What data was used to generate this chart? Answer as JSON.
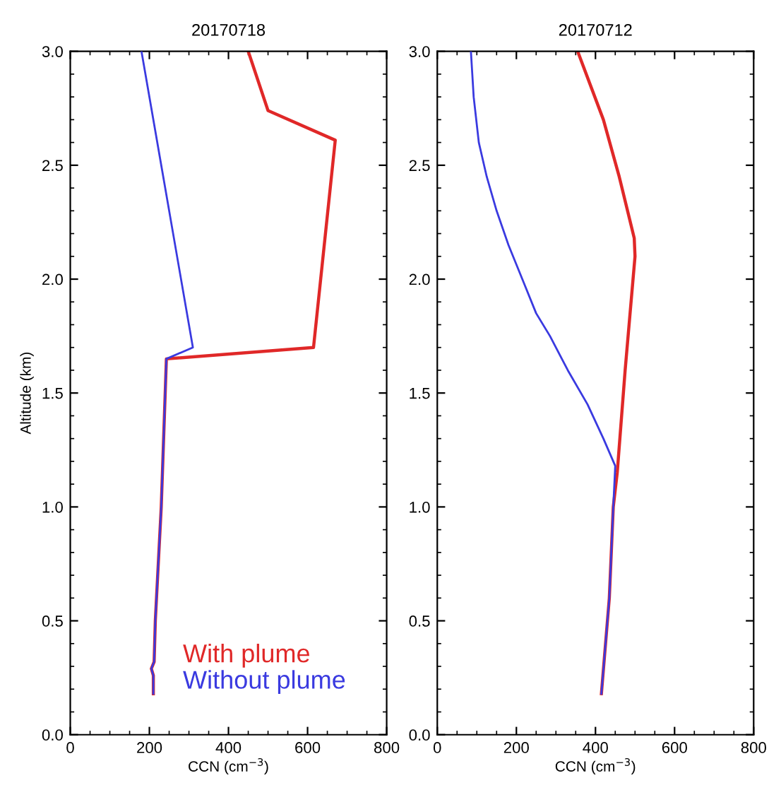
{
  "chart_data": [
    {
      "type": "line",
      "title": "20170718",
      "xlabel": "CCN (cm$^{−3}$)",
      "ylabel": "Altitude (km)",
      "xlim": [
        0,
        800
      ],
      "xticks": [
        0,
        200,
        400,
        600,
        800
      ],
      "ylim": [
        0,
        3.0
      ],
      "yticks": [
        {
          "value": 0,
          "label": "0.0"
        },
        0.5,
        {
          "value": 1,
          "label": "1.0"
        },
        1.5,
        {
          "value": 2,
          "label": "2.0"
        },
        2.5,
        {
          "value": 3,
          "label": "3.0"
        }
      ],
      "grid": false,
      "legend": "bottom right",
      "series": [
        {
          "name": "With plume",
          "color": "#e02828",
          "x": [
            210,
            210,
            205,
            212,
            215,
            230,
            240,
            243,
            615,
            670,
            500,
            450
          ],
          "values": [
            0.18,
            0.26,
            0.29,
            0.32,
            0.5,
            1.0,
            1.5,
            1.65,
            1.7,
            2.61,
            2.74,
            3.0
          ]
        },
        {
          "name": "Without plume",
          "color": "#3a3ae0",
          "x": [
            210,
            210,
            205,
            212,
            215,
            230,
            240,
            243,
            310,
            180
          ],
          "values": [
            0.18,
            0.26,
            0.29,
            0.32,
            0.5,
            1.0,
            1.5,
            1.65,
            1.7,
            3.0
          ]
        }
      ]
    },
    {
      "type": "line",
      "title": "20170712",
      "xlabel": "CCN (cm$^{−3}$)",
      "xlim": [
        0,
        800
      ],
      "xticks": [
        0,
        200,
        400,
        600,
        800
      ],
      "ylim": [
        0,
        3.0
      ],
      "yticks": [
        {
          "value": 0,
          "label": "0.0"
        },
        0.5,
        {
          "value": 1,
          "label": "1.0"
        },
        1.5,
        {
          "value": 2,
          "label": "2.0"
        },
        2.5,
        {
          "value": 3,
          "label": "3.0"
        }
      ],
      "grid": false,
      "series": [
        {
          "color": "#e02828",
          "x": [
            415,
            435,
            445,
            455,
            475,
            500,
            498,
            460,
            420,
            355
          ],
          "values": [
            0.18,
            0.6,
            1.0,
            1.15,
            1.6,
            2.1,
            2.18,
            2.45,
            2.7,
            3.0
          ]
        },
        {
          "color": "#3a3ae0",
          "x": [
            415,
            435,
            445,
            450,
            420,
            380,
            330,
            285,
            250,
            215,
            180,
            150,
            125,
            105,
            92,
            85
          ],
          "values": [
            0.18,
            0.6,
            1.0,
            1.18,
            1.3,
            1.45,
            1.6,
            1.75,
            1.85,
            2.0,
            2.15,
            2.3,
            2.45,
            2.6,
            2.8,
            3.0
          ]
        }
      ]
    }
  ]
}
